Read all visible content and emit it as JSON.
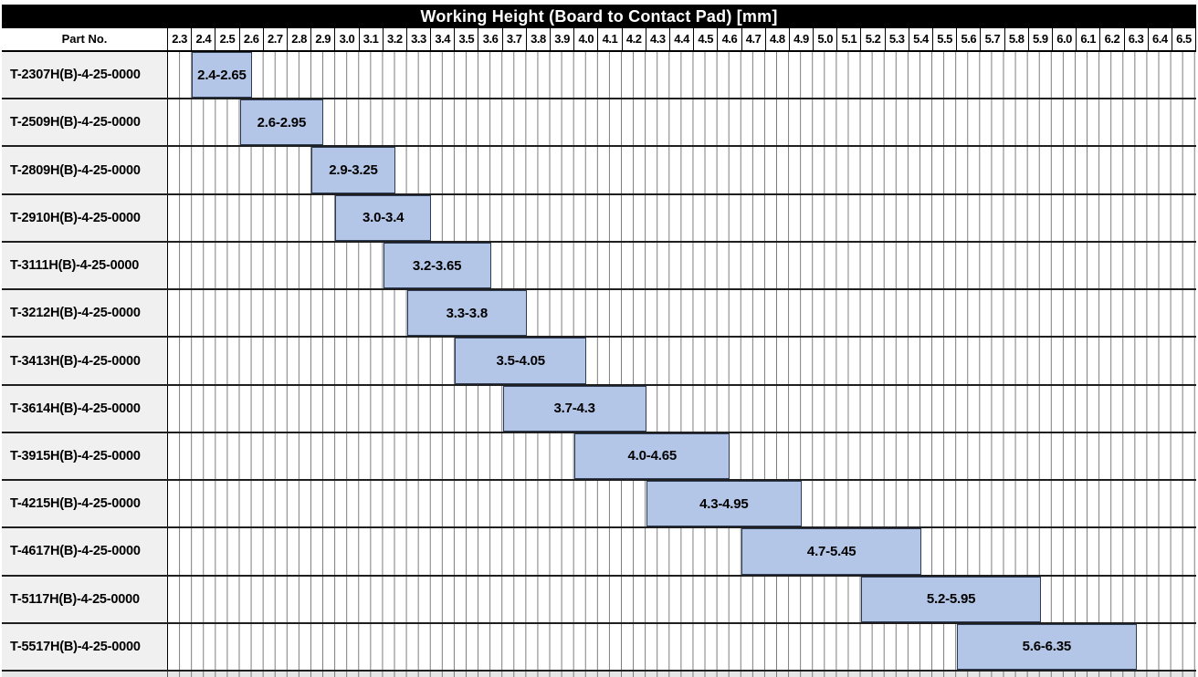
{
  "title": "Working Height (Board to Contact Pad) [mm]",
  "columns": {
    "part_no_header": "Part No."
  },
  "colors": {
    "title_bg": "#000000",
    "title_text": "#ffffff",
    "bar_fill": "#b3c6e7",
    "bar_border": "#2e3b55",
    "row_label_bg": "#f0f0f0",
    "grid_line": "#7a7a7a",
    "row_border": "#1f1f1f",
    "header_border": "#000000"
  },
  "chart_data": {
    "type": "bar",
    "subtype": "horizontal-range-gantt",
    "title": "Working Height (Board to Contact Pad) [mm]",
    "x_axis": {
      "min": 2.3,
      "max": 6.6,
      "major_step": 0.1,
      "minor_step": 0.05,
      "tick_labels": [
        "2.3",
        "2.4",
        "2.5",
        "2.6",
        "2.7",
        "2.8",
        "2.9",
        "3.0",
        "3.1",
        "3.2",
        "3.3",
        "3.4",
        "3.5",
        "3.6",
        "3.7",
        "3.8",
        "3.9",
        "4.0",
        "4.1",
        "4.2",
        "4.3",
        "4.4",
        "4.5",
        "4.6",
        "4.7",
        "4.8",
        "4.9",
        "5.0",
        "5.1",
        "5.2",
        "5.3",
        "5.4",
        "5.5",
        "5.6",
        "5.7",
        "5.8",
        "5.9",
        "6.0",
        "6.1",
        "6.2",
        "6.3",
        "6.4",
        "6.5"
      ]
    },
    "rows": [
      {
        "part_no": "T-2307H(B)-4-25-0000",
        "range_label": "2.4-2.65",
        "start": 2.4,
        "end": 2.65
      },
      {
        "part_no": "T-2509H(B)-4-25-0000",
        "range_label": "2.6-2.95",
        "start": 2.6,
        "end": 2.95
      },
      {
        "part_no": "T-2809H(B)-4-25-0000",
        "range_label": "2.9-3.25",
        "start": 2.9,
        "end": 3.25
      },
      {
        "part_no": "T-2910H(B)-4-25-0000",
        "range_label": "3.0-3.4",
        "start": 3.0,
        "end": 3.4
      },
      {
        "part_no": "T-3111H(B)-4-25-0000",
        "range_label": "3.2-3.65",
        "start": 3.2,
        "end": 3.65
      },
      {
        "part_no": "T-3212H(B)-4-25-0000",
        "range_label": "3.3-3.8",
        "start": 3.3,
        "end": 3.8
      },
      {
        "part_no": "T-3413H(B)-4-25-0000",
        "range_label": "3.5-4.05",
        "start": 3.5,
        "end": 4.05
      },
      {
        "part_no": "T-3614H(B)-4-25-0000",
        "range_label": "3.7-4.3",
        "start": 3.7,
        "end": 4.3
      },
      {
        "part_no": "T-3915H(B)-4-25-0000",
        "range_label": "4.0-4.65",
        "start": 4.0,
        "end": 4.65
      },
      {
        "part_no": "T-4215H(B)-4-25-0000",
        "range_label": "4.3-4.95",
        "start": 4.3,
        "end": 4.95
      },
      {
        "part_no": "T-4617H(B)-4-25-0000",
        "range_label": "4.7-5.45",
        "start": 4.7,
        "end": 5.45
      },
      {
        "part_no": "T-5117H(B)-4-25-0000",
        "range_label": "5.2-5.95",
        "start": 5.2,
        "end": 5.95
      },
      {
        "part_no": "T-5517H(B)-4-25-0000",
        "range_label": "5.6-6.35",
        "start": 5.6,
        "end": 6.35
      }
    ]
  }
}
